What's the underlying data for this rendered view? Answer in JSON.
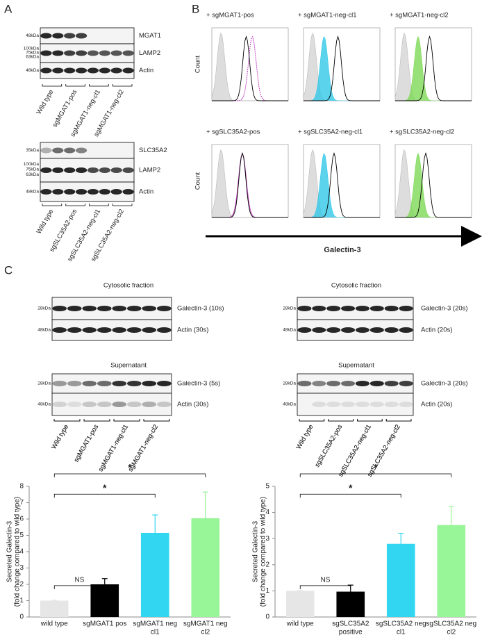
{
  "panel_a": {
    "letter": "A",
    "blot_1": {
      "rows": [
        {
          "label": "MGAT1",
          "markers": [
            "48kDa"
          ]
        },
        {
          "label": "LAMP2",
          "markers": [
            "100kDa",
            "75kDa",
            "63kDa"
          ]
        },
        {
          "label": "Actin",
          "markers": [
            "48kDa"
          ]
        }
      ],
      "lanes": [
        "Wild type",
        "sgMGAT1-pos",
        "sgMGAT1-neg-cl1",
        "sgMGAT1-neg-cl2"
      ]
    },
    "blot_2": {
      "rows": [
        {
          "label": "SLC35A2",
          "markers": [
            "35kDa"
          ]
        },
        {
          "label": "LAMP2",
          "markers": [
            "100kDa",
            "75kDa",
            "63kDa"
          ]
        },
        {
          "label": "Actin",
          "markers": [
            "48kDa"
          ]
        }
      ],
      "lanes": [
        "Wild type",
        "sgSLC35A2-pos",
        "sgSLC35A2-neg-cl1",
        "sgSLC35A2-neg-cl2"
      ]
    }
  },
  "panel_b": {
    "letter": "B",
    "y_label": "Count",
    "x_label": "Galectin-3",
    "histograms": [
      "+ sgMGAT1-pos",
      "+ sgMGAT1-neg-cl1",
      "+ sgMGAT1-neg-cl2",
      "+ sgSLC35A2-pos",
      "+ sgSLC35A2-neg-cl1",
      "+ sgSLC35A2-neg-cl2"
    ]
  },
  "panel_c": {
    "letter": "C",
    "left": {
      "blots": [
        {
          "title": "Cytosolic fraction",
          "rows": [
            {
              "label": "Galectin-3 (10s)",
              "markers": [
                "28kDa"
              ]
            },
            {
              "label": "Actin (30s)",
              "markers": [
                "48kDa"
              ]
            }
          ]
        },
        {
          "title": "Supernatant",
          "rows": [
            {
              "label": "Galectin-3 (5s)",
              "markers": [
                "28kDa"
              ]
            },
            {
              "label": "Actin (30s)",
              "markers": [
                "48kDa"
              ]
            }
          ]
        }
      ],
      "lanes": [
        "Wild type",
        "sgMGAT1-pos",
        "sgMGAT1-neg-cl1",
        "sgMGAT1-neg-cl2"
      ]
    },
    "right": {
      "blots": [
        {
          "title": "Cytosolic fraction",
          "rows": [
            {
              "label": "Galectin-3 (20s)",
              "markers": [
                "28kDa"
              ]
            },
            {
              "label": "Actin (20s)",
              "markers": [
                "48kDa"
              ]
            }
          ]
        },
        {
          "title": "Supernatant",
          "rows": [
            {
              "label": "Galectin-3 (20s)",
              "markers": [
                "28kDa"
              ]
            },
            {
              "label": "Actin (20s)",
              "markers": [
                "48kDa"
              ]
            }
          ]
        }
      ],
      "lanes": [
        "Wild type",
        "sgSLC35A2-pos",
        "sgSLC35A2-neg-cl1",
        "sgSLC35A2-neg-cl2"
      ]
    }
  },
  "chart_data": [
    {
      "type": "bar",
      "ylabel": [
        "Secreted Galectin-3",
        "(fold change compared to wild type)"
      ],
      "categories": [
        [
          "wild type"
        ],
        [
          "sgMGAT1 pos"
        ],
        [
          "sgMGAT1 neg",
          "cl1"
        ],
        [
          "sgMGAT1 neg",
          "cl2"
        ]
      ],
      "values": [
        1,
        2,
        5.15,
        6.05
      ],
      "errors": [
        0.03,
        0.35,
        1.1,
        1.6
      ],
      "colors": [
        "#e6e6e6",
        "#000000",
        "#33d6f0",
        "#98f598"
      ],
      "ylim": [
        0,
        8
      ],
      "yticks": [
        0,
        1,
        2,
        3,
        4,
        5,
        6,
        7,
        8
      ],
      "annotations": [
        "NS",
        "*",
        "*"
      ]
    },
    {
      "type": "bar",
      "ylabel": [
        "Secreted Galectin-3",
        "(fold change compared to wild type)"
      ],
      "categories": [
        [
          "wild type"
        ],
        [
          "sgSLC35A2",
          "positive"
        ],
        [
          "sgSLC35A2 neg",
          "cl1"
        ],
        [
          "sgSLC35A2 neg",
          "cl2"
        ]
      ],
      "values": [
        1,
        0.97,
        2.8,
        3.52
      ],
      "errors": [
        0.02,
        0.25,
        0.4,
        0.72
      ],
      "colors": [
        "#e6e6e6",
        "#000000",
        "#33d6f0",
        "#98f598"
      ],
      "ylim": [
        0,
        5
      ],
      "yticks": [
        0,
        1,
        2,
        3,
        4,
        5
      ],
      "annotations": [
        "NS",
        "*",
        "*"
      ]
    }
  ]
}
